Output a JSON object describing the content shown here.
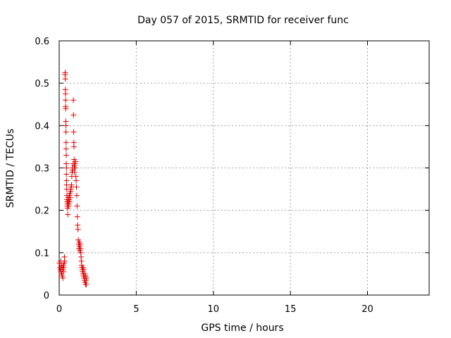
{
  "chart_data": {
    "type": "scatter",
    "title": "Day 057 of 2015, SRMTID for receiver func",
    "xlabel": "GPS time / hours",
    "ylabel": "SRMTID / TECUs",
    "xlim": [
      0,
      24
    ],
    "ylim": [
      0,
      0.6
    ],
    "xticks": [
      0,
      5,
      10,
      15,
      20
    ],
    "xtick_labels": [
      "0",
      "5",
      "10",
      "15",
      "20"
    ],
    "yticks": [
      0,
      0.1,
      0.2,
      0.3,
      0.4,
      0.5,
      0.6
    ],
    "ytick_labels": [
      "0",
      "0.1",
      "0.2",
      "0.3",
      "0.4",
      "0.5",
      "0.6"
    ],
    "grid": true,
    "marker": "+",
    "color": "#e00000",
    "series": [
      {
        "name": "SRMTID",
        "points": [
          [
            0.02,
            0.075
          ],
          [
            0.05,
            0.065
          ],
          [
            0.08,
            0.06
          ],
          [
            0.1,
            0.08
          ],
          [
            0.12,
            0.055
          ],
          [
            0.14,
            0.07
          ],
          [
            0.16,
            0.05
          ],
          [
            0.18,
            0.065
          ],
          [
            0.2,
            0.045
          ],
          [
            0.22,
            0.06
          ],
          [
            0.24,
            0.04
          ],
          [
            0.26,
            0.07
          ],
          [
            0.28,
            0.055
          ],
          [
            0.3,
            0.065
          ],
          [
            0.32,
            0.075
          ],
          [
            0.34,
            0.09
          ],
          [
            0.36,
            0.08
          ],
          [
            0.38,
            0.52
          ],
          [
            0.39,
            0.525
          ],
          [
            0.4,
            0.51
          ],
          [
            0.4,
            0.485
          ],
          [
            0.41,
            0.475
          ],
          [
            0.42,
            0.46
          ],
          [
            0.42,
            0.445
          ],
          [
            0.43,
            0.44
          ],
          [
            0.43,
            0.41
          ],
          [
            0.44,
            0.4
          ],
          [
            0.44,
            0.385
          ],
          [
            0.45,
            0.36
          ],
          [
            0.45,
            0.345
          ],
          [
            0.46,
            0.33
          ],
          [
            0.46,
            0.31
          ],
          [
            0.47,
            0.3
          ],
          [
            0.47,
            0.285
          ],
          [
            0.48,
            0.27
          ],
          [
            0.48,
            0.26
          ],
          [
            0.49,
            0.25
          ],
          [
            0.5,
            0.235
          ],
          [
            0.5,
            0.225
          ],
          [
            0.52,
            0.22
          ],
          [
            0.53,
            0.21
          ],
          [
            0.54,
            0.215
          ],
          [
            0.55,
            0.205
          ],
          [
            0.56,
            0.19
          ],
          [
            0.57,
            0.22
          ],
          [
            0.58,
            0.23
          ],
          [
            0.6,
            0.215
          ],
          [
            0.62,
            0.21
          ],
          [
            0.64,
            0.225
          ],
          [
            0.66,
            0.235
          ],
          [
            0.68,
            0.22
          ],
          [
            0.7,
            0.24
          ],
          [
            0.72,
            0.23
          ],
          [
            0.74,
            0.245
          ],
          [
            0.76,
            0.25
          ],
          [
            0.78,
            0.255
          ],
          [
            0.8,
            0.26
          ],
          [
            0.82,
            0.28
          ],
          [
            0.84,
            0.29
          ],
          [
            0.86,
            0.3
          ],
          [
            0.88,
            0.295
          ],
          [
            0.9,
            0.31
          ],
          [
            0.92,
            0.46
          ],
          [
            0.93,
            0.425
          ],
          [
            0.94,
            0.385
          ],
          [
            0.95,
            0.36
          ],
          [
            0.96,
            0.35
          ],
          [
            0.97,
            0.32
          ],
          [
            0.98,
            0.305
          ],
          [
            0.99,
            0.29
          ],
          [
            1.0,
            0.3
          ],
          [
            1.02,
            0.31
          ],
          [
            1.04,
            0.3
          ],
          [
            1.06,
            0.315
          ],
          [
            1.08,
            0.28
          ],
          [
            1.1,
            0.27
          ],
          [
            1.12,
            0.255
          ],
          [
            1.14,
            0.235
          ],
          [
            1.16,
            0.21
          ],
          [
            1.18,
            0.185
          ],
          [
            1.2,
            0.165
          ],
          [
            1.22,
            0.155
          ],
          [
            1.24,
            0.13
          ],
          [
            1.26,
            0.12
          ],
          [
            1.28,
            0.11
          ],
          [
            1.3,
            0.125
          ],
          [
            1.32,
            0.115
          ],
          [
            1.34,
            0.105
          ],
          [
            1.36,
            0.12
          ],
          [
            1.38,
            0.11
          ],
          [
            1.4,
            0.1
          ],
          [
            1.42,
            0.09
          ],
          [
            1.44,
            0.08
          ],
          [
            1.46,
            0.07
          ],
          [
            1.48,
            0.065
          ],
          [
            1.5,
            0.06
          ],
          [
            1.52,
            0.055
          ],
          [
            1.54,
            0.065
          ],
          [
            1.56,
            0.05
          ],
          [
            1.58,
            0.045
          ],
          [
            1.6,
            0.06
          ],
          [
            1.62,
            0.04
          ],
          [
            1.64,
            0.035
          ],
          [
            1.66,
            0.05
          ],
          [
            1.68,
            0.03
          ],
          [
            1.7,
            0.045
          ],
          [
            1.72,
            0.025
          ],
          [
            1.74,
            0.035
          ],
          [
            1.76,
            0.025
          ],
          [
            1.78,
            0.04
          ]
        ]
      }
    ]
  }
}
